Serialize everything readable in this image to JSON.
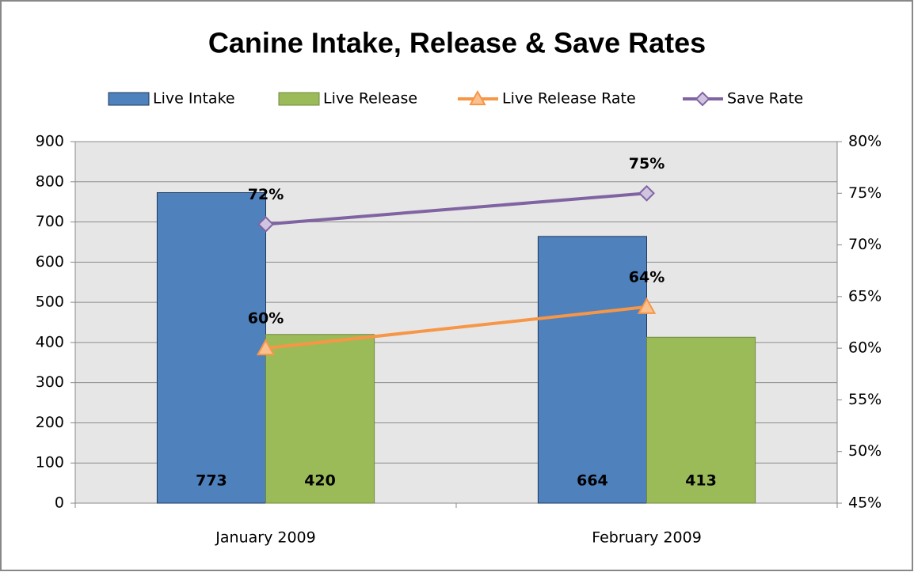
{
  "chart_data": {
    "type": "bar",
    "title": "Canine Intake, Release & Save Rates",
    "categories": [
      "January 2009",
      "February 2009"
    ],
    "series": [
      {
        "name": "Live Intake",
        "type": "bar",
        "color": "#4f81bd",
        "values": [
          773,
          664
        ]
      },
      {
        "name": "Live Release",
        "type": "bar",
        "color": "#9bbb59",
        "values": [
          420,
          413
        ]
      },
      {
        "name": "Live Release Rate",
        "type": "line",
        "axis": "y2",
        "color": "#f79646",
        "values": [
          60,
          64
        ],
        "value_labels": [
          "60%",
          "64%"
        ]
      },
      {
        "name": "Save Rate",
        "type": "line",
        "axis": "y2",
        "color": "#8064a2",
        "values": [
          72,
          75
        ],
        "value_labels": [
          "72%",
          "75%"
        ]
      }
    ],
    "ylim": [
      0,
      900
    ],
    "yticks": [
      0,
      100,
      200,
      300,
      400,
      500,
      600,
      700,
      800,
      900
    ],
    "y2lim": [
      45,
      80
    ],
    "y2ticks": [
      {
        "value": 45,
        "label": "45%"
      },
      {
        "value": 50,
        "label": "50%"
      },
      {
        "value": 55,
        "label": "55%"
      },
      {
        "value": 60,
        "label": "60%"
      },
      {
        "value": 65,
        "label": "65%"
      },
      {
        "value": 70,
        "label": "70%"
      },
      {
        "value": 75,
        "label": "75%"
      },
      {
        "value": 80,
        "label": "80%"
      }
    ],
    "grid": true,
    "legend": "top"
  }
}
